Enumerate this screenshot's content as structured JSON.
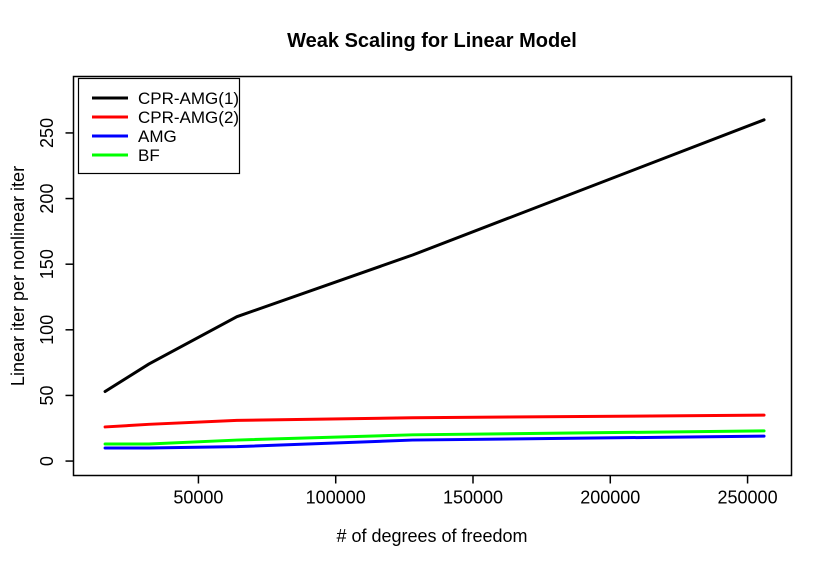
{
  "figure": {
    "background": "#FFFFFF",
    "axis_color": "#000000"
  },
  "chart_data": {
    "type": "line",
    "title": "Weak Scaling for Linear Model",
    "xlabel": "# of degrees of freedom",
    "ylabel": "Linear iter per nonlinear iter",
    "x": [
      16000,
      32000,
      64000,
      128000,
      256000
    ],
    "series": [
      {
        "name": "CPR-AMG(1)",
        "color": "#000000",
        "values": [
          53,
          74,
          110,
          157,
          260
        ]
      },
      {
        "name": "CPR-AMG(2)",
        "color": "#FF0000",
        "values": [
          26,
          28,
          31,
          33,
          35
        ]
      },
      {
        "name": "AMG",
        "color": "#0000FF",
        "values": [
          10,
          10,
          11,
          16,
          19
        ]
      },
      {
        "name": "BF",
        "color": "#00FF00",
        "values": [
          13,
          13,
          16,
          20,
          23
        ]
      }
    ],
    "xticks": {
      "values": [
        50000,
        100000,
        150000,
        200000,
        250000
      ],
      "labels": [
        "50000",
        "100000",
        "150000",
        "200000",
        "250000"
      ]
    },
    "yticks": {
      "values": [
        0,
        50,
        100,
        150,
        200,
        250
      ],
      "labels": [
        "0",
        "50",
        "100",
        "150",
        "200",
        "250"
      ]
    },
    "xlim": [
      4500,
      266000
    ],
    "ylim": [
      -11,
      293
    ],
    "grid": false,
    "legend": {
      "position": "top-left"
    }
  }
}
